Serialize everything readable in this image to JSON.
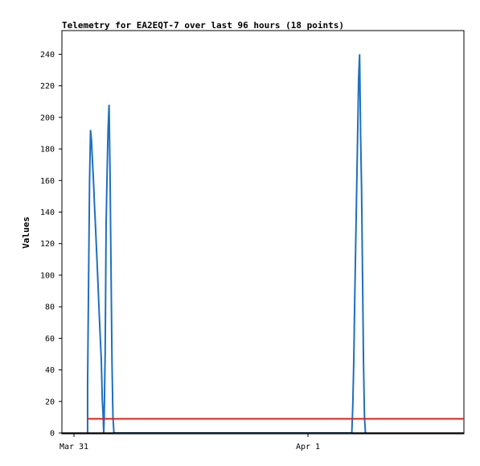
{
  "chart_data": {
    "type": "line",
    "title": "Telemetry for EA2EQT-7 over last 96 hours (18 points)",
    "ylabel": "Values",
    "xlabel": "",
    "ylim": [
      0,
      255
    ],
    "yticks": [
      0,
      20,
      40,
      60,
      80,
      100,
      120,
      140,
      160,
      180,
      200,
      220,
      240
    ],
    "x_ticks": [
      {
        "label": "Mar 31",
        "at": 0
      },
      {
        "label": "Apr 1",
        "at": 24
      }
    ],
    "xlim": [
      0,
      40
    ],
    "grid": false,
    "legend": "none",
    "series": [
      {
        "color": "#1f6fbf",
        "style": "step",
        "points": [
          [
            1.4,
            0
          ],
          [
            1.4,
            32
          ],
          [
            1.5,
            97
          ],
          [
            1.6,
            160
          ],
          [
            1.7,
            192
          ],
          [
            1.8,
            185
          ],
          [
            1.9,
            172
          ],
          [
            2.0,
            160
          ],
          [
            2.1,
            145
          ],
          [
            2.2,
            132
          ],
          [
            2.3,
            118
          ],
          [
            2.4,
            104
          ],
          [
            2.5,
            89
          ],
          [
            2.6,
            74
          ],
          [
            2.7,
            60
          ],
          [
            2.8,
            47
          ],
          [
            2.85,
            35
          ],
          [
            2.9,
            22
          ],
          [
            3.0,
            10
          ],
          [
            3.05,
            0
          ],
          [
            3.1,
            10
          ],
          [
            3.2,
            51
          ],
          [
            3.3,
            133
          ],
          [
            3.4,
            165
          ],
          [
            3.5,
            193
          ],
          [
            3.6,
            208
          ],
          [
            3.7,
            165
          ],
          [
            3.8,
            105
          ],
          [
            3.9,
            45
          ],
          [
            4.0,
            10
          ],
          [
            4.1,
            0
          ],
          [
            28.5,
            0
          ],
          [
            28.6,
            17
          ],
          [
            28.7,
            45
          ],
          [
            28.8,
            85
          ],
          [
            28.9,
            120
          ],
          [
            29.0,
            155
          ],
          [
            29.1,
            190
          ],
          [
            29.2,
            225
          ],
          [
            29.3,
            240
          ],
          [
            29.4,
            190
          ],
          [
            29.5,
            155
          ],
          [
            29.6,
            100
          ],
          [
            29.7,
            45
          ],
          [
            29.8,
            10
          ],
          [
            29.9,
            0
          ]
        ]
      },
      {
        "color": "#e0201c",
        "style": "line",
        "points": [
          [
            1.4,
            9
          ],
          [
            40,
            9
          ]
        ]
      }
    ]
  }
}
